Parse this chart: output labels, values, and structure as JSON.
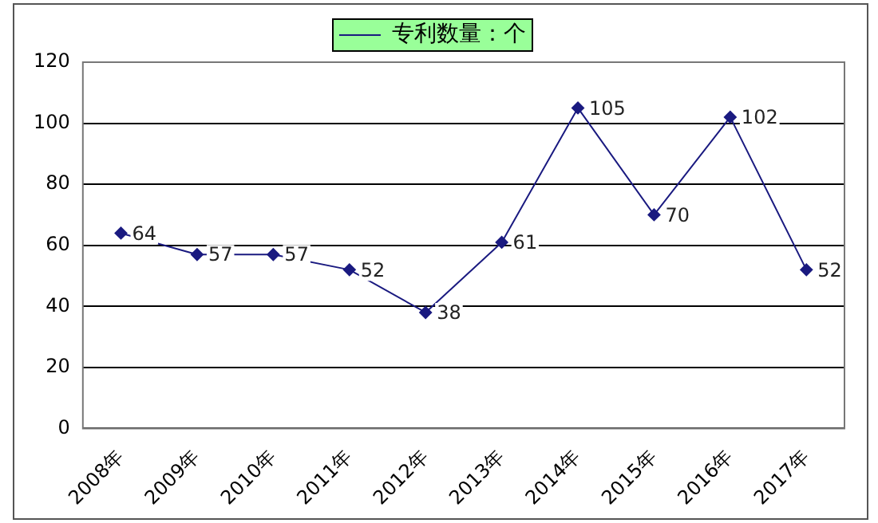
{
  "chart_data": {
    "type": "line",
    "categories": [
      "2008年",
      "2009年",
      "2010年",
      "2011年",
      "2012年",
      "2013年",
      "2014年",
      "2015年",
      "2016年",
      "2017年"
    ],
    "series": [
      {
        "name": "专利数量：个",
        "color": "#1a1a80",
        "values": [
          64,
          57,
          57,
          52,
          38,
          61,
          105,
          70,
          102,
          52
        ]
      }
    ],
    "ylim": [
      0,
      120
    ],
    "yticks": [
      0,
      20,
      40,
      60,
      80,
      100,
      120
    ],
    "grid": "y",
    "legend": "top",
    "marker": "diamond",
    "line_style": "solid",
    "data_labels": true
  }
}
